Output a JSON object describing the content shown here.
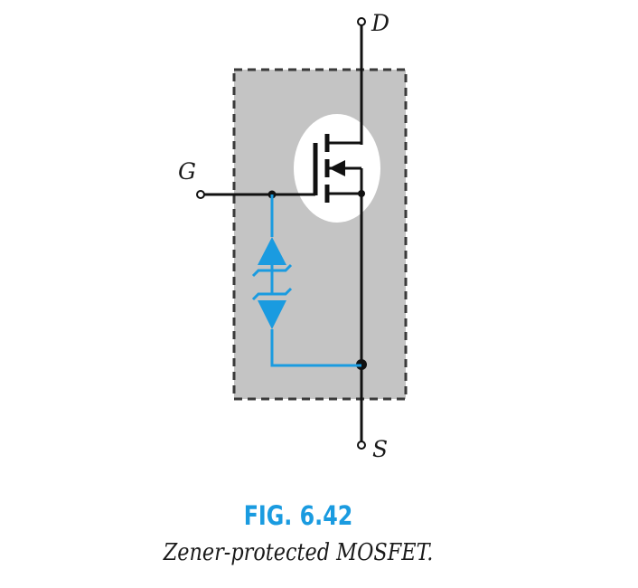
{
  "terminals": {
    "drain": "D",
    "gate": "G",
    "source": "S"
  },
  "figure": {
    "number": "FIG. 6.42",
    "caption": "Zener-protected MOSFET."
  },
  "colors": {
    "package_fill": "#c4c4c4",
    "package_border": "#3a3a3a",
    "wire": "#111111",
    "zener": "#1a9be0",
    "fig_number": "#1a9be0",
    "caption": "#1a1a1a"
  },
  "components": {
    "transistor": "mosfet-icon",
    "protection": "back-to-back-zener-diodes-icon"
  }
}
